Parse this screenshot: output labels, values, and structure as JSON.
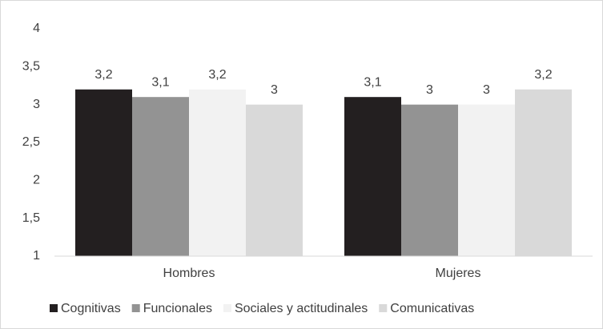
{
  "chart_data": {
    "type": "bar",
    "categories": [
      "Hombres",
      "Mujeres"
    ],
    "series": [
      {
        "name": "Cognitivas",
        "color": "#231f20",
        "values": [
          3.2,
          3.1
        ],
        "value_labels": [
          "3,2",
          "3,1"
        ]
      },
      {
        "name": "Funcionales",
        "color": "#939393",
        "values": [
          3.1,
          3
        ],
        "value_labels": [
          "3,1",
          "3"
        ]
      },
      {
        "name": "Sociales y actitudinales",
        "color": "#f2f2f2",
        "values": [
          3.2,
          3
        ],
        "value_labels": [
          "3,2",
          "3"
        ]
      },
      {
        "name": "Comunicativas",
        "color": "#d9d9d9",
        "values": [
          3,
          3.2
        ],
        "value_labels": [
          "3",
          "3,2"
        ]
      }
    ],
    "ylim": [
      1,
      4
    ],
    "yticks": [
      1,
      {
        "value": 1.5,
        "label": "1,5"
      },
      2,
      {
        "value": 2.5,
        "label": "2,5"
      },
      3,
      {
        "value": 3.5,
        "label": "3,5"
      },
      4
    ],
    "grid": false,
    "legend": "bottom"
  }
}
